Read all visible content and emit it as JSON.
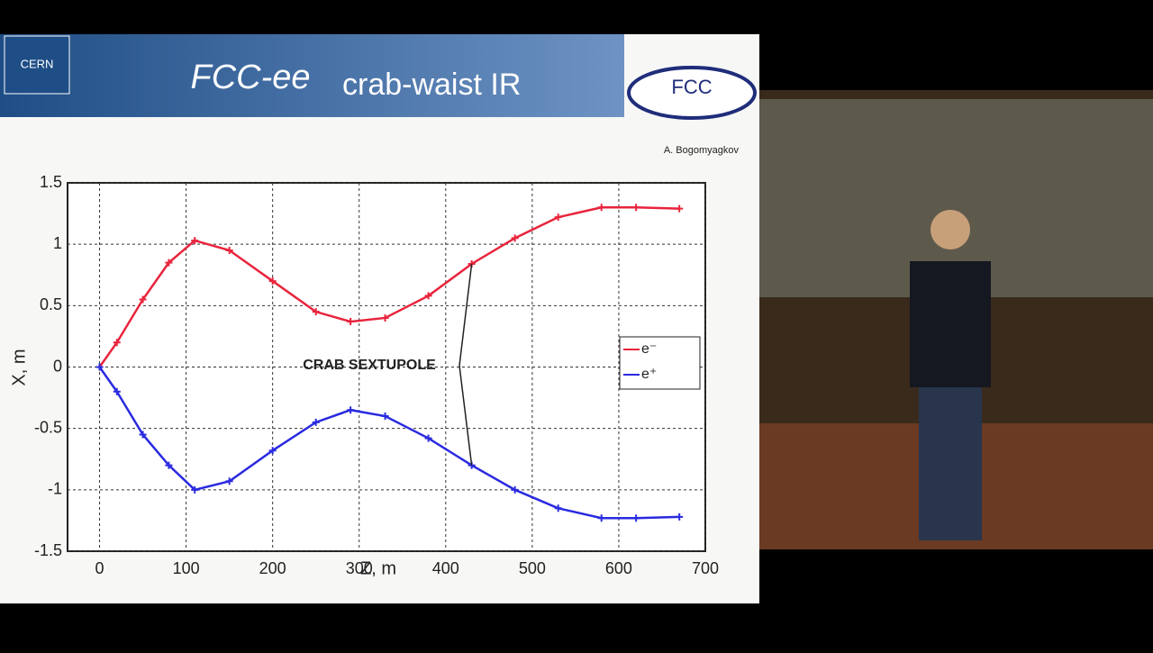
{
  "slide": {
    "title_italic": "FCC-ee",
    "title_rest": "crab-waist IR",
    "author": "A. Bogomyagkov",
    "logo_left": "CERN",
    "logo_right": "FCC"
  },
  "chart_data": {
    "type": "line",
    "x_label": "Z, m",
    "y_label": "X, m",
    "annotation": "CRAB SEXTUPOLE",
    "xlim": [
      -37,
      700
    ],
    "ylim": [
      -1.5,
      1.5
    ],
    "xticks": [
      0,
      100,
      200,
      300,
      400,
      500,
      600,
      700
    ],
    "yticks": [
      -1.5,
      -1,
      -0.5,
      0,
      0.5,
      1,
      1.5
    ],
    "grid": true,
    "legend": "right",
    "x": [
      0,
      20,
      50,
      80,
      110,
      150,
      200,
      250,
      290,
      330,
      380,
      430,
      480,
      530,
      580,
      620,
      670
    ],
    "series": [
      {
        "name": "e⁻",
        "color": "#e8243c",
        "values": [
          0,
          0.2,
          0.55,
          0.85,
          1.03,
          0.95,
          0.7,
          0.45,
          0.37,
          0.4,
          0.58,
          0.84,
          1.05,
          1.22,
          1.3,
          1.3,
          1.29
        ]
      },
      {
        "name": "e⁺",
        "color": "#2a2ae0",
        "values": [
          0,
          -0.2,
          -0.55,
          -0.8,
          -1.0,
          -0.93,
          -0.68,
          -0.45,
          -0.35,
          -0.4,
          -0.58,
          -0.8,
          -1.0,
          -1.15,
          -1.23,
          -1.23,
          -1.22
        ]
      }
    ]
  }
}
